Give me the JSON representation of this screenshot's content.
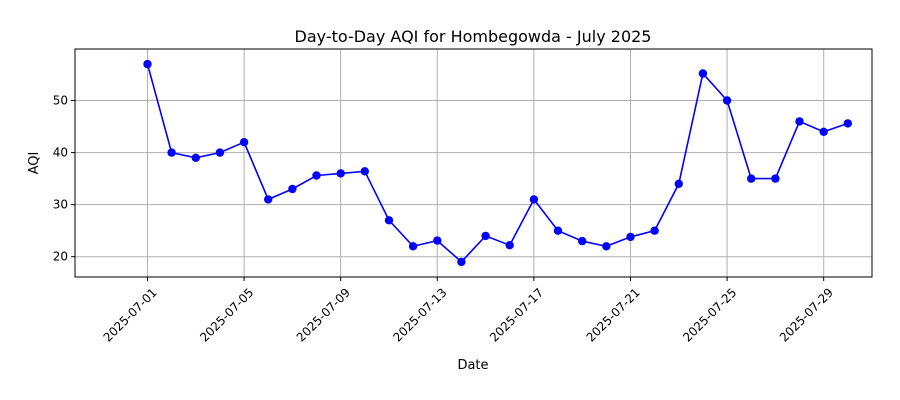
{
  "chart_data": {
    "type": "line",
    "title": "Day-to-Day AQI for Hombegowda - July 2025",
    "xlabel": "Date",
    "ylabel": "AQI",
    "x": [
      "2025-07-01",
      "2025-07-02",
      "2025-07-03",
      "2025-07-04",
      "2025-07-05",
      "2025-07-06",
      "2025-07-07",
      "2025-07-08",
      "2025-07-09",
      "2025-07-10",
      "2025-07-11",
      "2025-07-12",
      "2025-07-13",
      "2025-07-14",
      "2025-07-15",
      "2025-07-16",
      "2025-07-17",
      "2025-07-18",
      "2025-07-19",
      "2025-07-20",
      "2025-07-21",
      "2025-07-22",
      "2025-07-23",
      "2025-07-24",
      "2025-07-25",
      "2025-07-26",
      "2025-07-27",
      "2025-07-28",
      "2025-07-29",
      "2025-07-30"
    ],
    "series": [
      {
        "values": [
          57,
          40,
          39,
          40,
          42,
          31,
          33,
          35.6,
          36,
          36.4,
          27,
          22,
          23.1,
          19,
          24,
          22.2,
          31,
          25,
          23,
          22,
          23.8,
          25,
          34,
          55.2,
          50,
          35,
          35,
          46,
          44,
          45.6
        ],
        "color": "#0000ff",
        "marker": "circle"
      }
    ],
    "xticks": [
      "2025-07-01",
      "2025-07-05",
      "2025-07-09",
      "2025-07-13",
      "2025-07-17",
      "2025-07-21",
      "2025-07-25",
      "2025-07-29"
    ],
    "yticks": [
      20,
      30,
      40,
      50
    ],
    "xlim": [
      "2025-06-28",
      "2025-07-31"
    ],
    "ylim": [
      16.1,
      59.9
    ],
    "grid": true
  }
}
